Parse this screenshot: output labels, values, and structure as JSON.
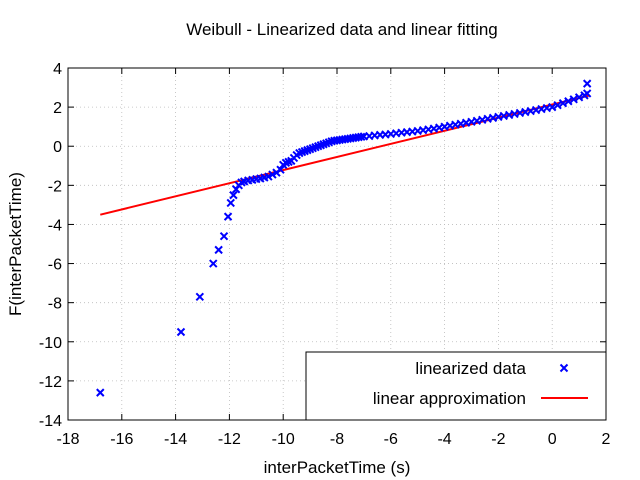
{
  "chart_data": {
    "type": "scatter",
    "title": "Weibull - Linearized data and linear fitting",
    "xlabel": "interPacketTime (s)",
    "ylabel": "F(interPacketTime)",
    "xlim": [
      -18,
      2
    ],
    "ylim": [
      -14,
      4
    ],
    "xticks": [
      "-18",
      "-16",
      "-14",
      "-12",
      "-10",
      "-8",
      "-6",
      "-4",
      "-2",
      "0",
      "2"
    ],
    "yticks": [
      "-14",
      "-12",
      "-10",
      "-8",
      "-6",
      "-4",
      "-2",
      "0",
      "2",
      "4"
    ],
    "grid": true,
    "legend_position": "bottom-right",
    "colors": {
      "data": "#0000ff",
      "fit": "#ff0000"
    },
    "series": [
      {
        "name": "linearized data",
        "kind": "points",
        "marker": "x",
        "x": [
          -16.8,
          -13.8,
          -13.1,
          -12.6,
          -12.4,
          -12.2,
          -12.05,
          -11.95,
          -11.85,
          -11.75,
          -11.65,
          -11.55,
          -11.45,
          -11.3,
          -11.15,
          -11.0,
          -10.85,
          -10.7,
          -10.55,
          -10.4,
          -10.25,
          -10.1,
          -10.0,
          -9.9,
          -9.8,
          -9.7,
          -9.6,
          -9.5,
          -9.4,
          -9.3,
          -9.2,
          -9.1,
          -9.0,
          -8.9,
          -8.8,
          -8.7,
          -8.6,
          -8.5,
          -8.4,
          -8.3,
          -8.2,
          -8.1,
          -8.0,
          -7.9,
          -7.8,
          -7.7,
          -7.6,
          -7.5,
          -7.4,
          -7.3,
          -7.2,
          -7.1,
          -7.0,
          -6.8,
          -6.6,
          -6.4,
          -6.2,
          -6.0,
          -5.8,
          -5.6,
          -5.4,
          -5.2,
          -5.0,
          -4.8,
          -4.6,
          -4.4,
          -4.2,
          -4.0,
          -3.8,
          -3.6,
          -3.4,
          -3.2,
          -3.0,
          -2.8,
          -2.6,
          -2.4,
          -2.2,
          -2.0,
          -1.8,
          -1.6,
          -1.4,
          -1.2,
          -1.0,
          -0.8,
          -0.6,
          -0.4,
          -0.2,
          0.0,
          0.2,
          0.4,
          0.6,
          0.8,
          1.0,
          1.2,
          1.3,
          1.3
        ],
        "y": [
          -12.6,
          -9.5,
          -7.7,
          -6.0,
          -5.3,
          -4.6,
          -3.6,
          -2.9,
          -2.5,
          -2.2,
          -2.0,
          -1.85,
          -1.8,
          -1.75,
          -1.72,
          -1.68,
          -1.65,
          -1.6,
          -1.55,
          -1.45,
          -1.35,
          -1.2,
          -0.95,
          -0.85,
          -0.8,
          -0.75,
          -0.6,
          -0.45,
          -0.35,
          -0.3,
          -0.25,
          -0.2,
          -0.15,
          -0.1,
          -0.05,
          0.0,
          0.05,
          0.1,
          0.15,
          0.2,
          0.25,
          0.28,
          0.3,
          0.32,
          0.34,
          0.36,
          0.38,
          0.4,
          0.42,
          0.44,
          0.46,
          0.48,
          0.5,
          0.52,
          0.55,
          0.58,
          0.6,
          0.63,
          0.66,
          0.69,
          0.72,
          0.75,
          0.78,
          0.82,
          0.86,
          0.9,
          0.95,
          1.0,
          1.05,
          1.1,
          1.15,
          1.2,
          1.25,
          1.3,
          1.35,
          1.4,
          1.45,
          1.5,
          1.55,
          1.6,
          1.65,
          1.7,
          1.75,
          1.8,
          1.85,
          1.9,
          1.95,
          2.0,
          2.1,
          2.2,
          2.3,
          2.4,
          2.5,
          2.6,
          2.7,
          3.2
        ]
      },
      {
        "name": "linear approximation",
        "kind": "line",
        "x": [
          -16.8,
          1.4
        ],
        "y": [
          -3.5,
          2.6
        ]
      }
    ]
  }
}
